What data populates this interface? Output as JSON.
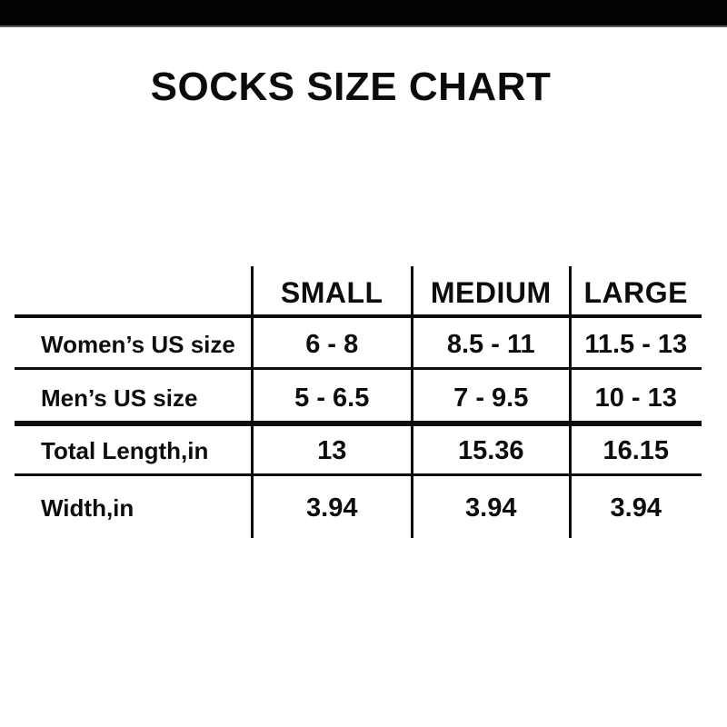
{
  "colors": {
    "background": "#ffffff",
    "top_bar": "#030303",
    "text": "#0d0d0d"
  },
  "chart_data": {
    "type": "table",
    "title": "SOCKS SIZE CHART",
    "columns": [
      "SMALL",
      "MEDIUM",
      "LARGE"
    ],
    "corner_label": "",
    "rows": [
      {
        "label": "Women’s US size",
        "values": [
          "6 - 8",
          "8.5 - 11",
          "11.5 - 13"
        ]
      },
      {
        "label": "Men’s US size",
        "values": [
          "5 - 6.5",
          "7 - 9.5",
          "10 - 13"
        ]
      },
      {
        "label": "Total Length,in",
        "values": [
          "13",
          "15.36",
          "16.15"
        ]
      },
      {
        "label": "Width,in",
        "values": [
          "3.94",
          "3.94",
          "3.94"
        ]
      }
    ],
    "layout_hints": {
      "grid": "vertical dividers between columns, horizontal rules between rows, thick rule below Men’s US size row, no outer border"
    }
  }
}
